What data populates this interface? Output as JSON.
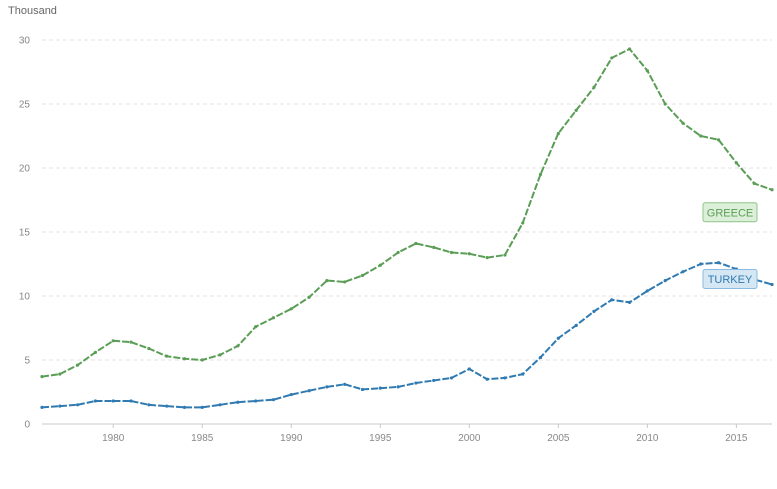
{
  "chart_data": {
    "type": "line",
    "ylabel": "Thousand",
    "xlim": [
      1976,
      2017
    ],
    "ylim": [
      0,
      30
    ],
    "xticks": [
      1980,
      1985,
      1990,
      1995,
      2000,
      2005,
      2010,
      2015
    ],
    "yticks": [
      0,
      5,
      10,
      15,
      20,
      25,
      30
    ],
    "grid": true,
    "x": [
      1976,
      1977,
      1978,
      1979,
      1980,
      1981,
      1982,
      1983,
      1984,
      1985,
      1986,
      1987,
      1988,
      1989,
      1990,
      1991,
      1992,
      1993,
      1994,
      1995,
      1996,
      1997,
      1998,
      1999,
      2000,
      2001,
      2002,
      2003,
      2004,
      2005,
      2006,
      2007,
      2008,
      2009,
      2010,
      2011,
      2012,
      2013,
      2014,
      2015,
      2016,
      2017
    ],
    "series": [
      {
        "name": "GREECE",
        "color": "#5a9e55",
        "label_bg": "#dcefd9",
        "label_border": "#8fc48a",
        "values": [
          3.7,
          3.9,
          4.6,
          5.6,
          6.5,
          6.4,
          5.9,
          5.3,
          5.1,
          5.0,
          5.4,
          6.1,
          7.6,
          8.3,
          9.0,
          9.9,
          11.2,
          11.1,
          11.6,
          12.4,
          13.4,
          14.1,
          13.8,
          13.4,
          13.3,
          13.0,
          13.2,
          15.7,
          19.5,
          22.7,
          24.5,
          26.3,
          28.6,
          29.3,
          27.6,
          25.0,
          23.5,
          22.5,
          22.2,
          20.4,
          18.8,
          18.3
        ]
      },
      {
        "name": "TURKEY",
        "color": "#2f7ab1",
        "label_bg": "#d6e7f4",
        "label_border": "#8bbbe0",
        "values": [
          1.3,
          1.4,
          1.5,
          1.8,
          1.8,
          1.8,
          1.5,
          1.4,
          1.3,
          1.3,
          1.5,
          1.7,
          1.8,
          1.9,
          2.3,
          2.6,
          2.9,
          3.1,
          2.7,
          2.8,
          2.9,
          3.2,
          3.4,
          3.6,
          4.3,
          3.5,
          3.6,
          3.9,
          5.2,
          6.7,
          7.7,
          8.8,
          9.7,
          9.5,
          10.4,
          11.2,
          11.9,
          12.5,
          12.6,
          12.1,
          11.3,
          10.9
        ]
      }
    ]
  }
}
